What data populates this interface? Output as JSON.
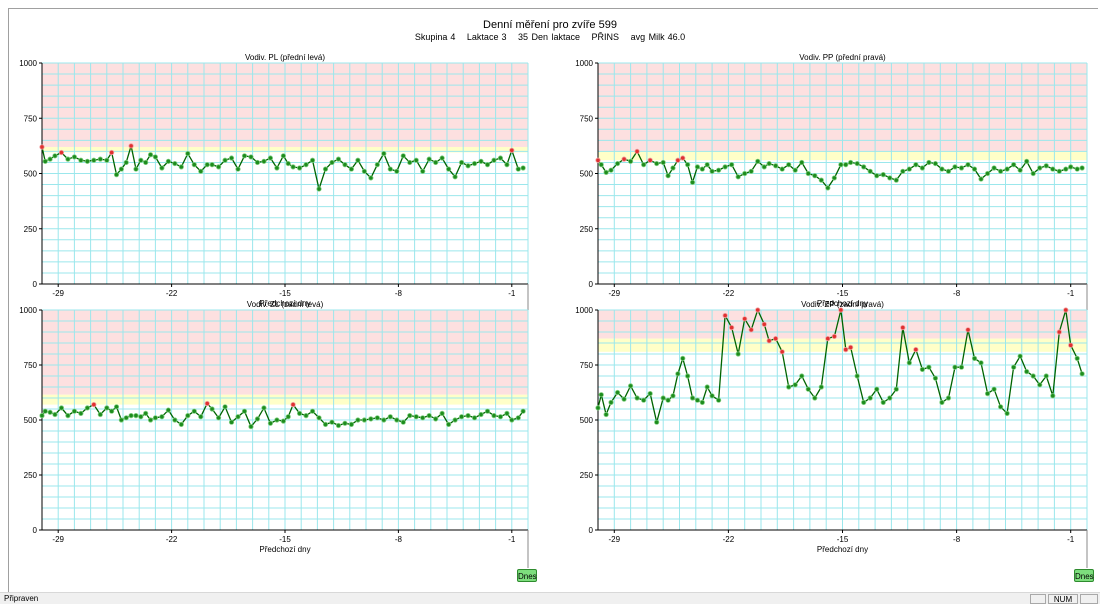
{
  "header": {
    "title": "Denní měření pro zvíře 599",
    "group_label": "Skupina",
    "group_value": "4",
    "lactation_label": "Laktace",
    "lactation_value": "3",
    "days_in_lactation": "35 Den laktace",
    "breed": "PŘINS",
    "avg_milk_label": "avg Milk",
    "avg_milk_value": "46.0"
  },
  "today_button_label": "Dnes",
  "status": {
    "text": "Připraven",
    "num": "NUM"
  },
  "colors": {
    "alarm_zone": "#fde0e0",
    "warning_zone": "#ffffc8",
    "grid": "#9be7ec",
    "line": "#006400",
    "point_normal": "#1e8c1e",
    "point_alert": "#e03030"
  },
  "chart_data": [
    {
      "type": "line",
      "title": "Vodiv. PL (přední levá)",
      "ylim": [
        0,
        1000
      ],
      "yticks": [
        "0",
        "250",
        "500",
        "750",
        "1000"
      ],
      "xlim": [
        -30,
        0
      ],
      "xticks": [
        "-29",
        "-22",
        "-15",
        "-8",
        "-1"
      ],
      "xlabel": "Předchozí dny",
      "alarm_from": 620,
      "warning_from": 595,
      "series": [
        {
          "x": [
            -30,
            -29.8,
            -29.5,
            -29.2,
            -28.8,
            -28.4,
            -28,
            -27.6,
            -27.2,
            -26.8,
            -26.4,
            -26,
            -25.7,
            -25.4,
            -25.1,
            -24.8,
            -24.5,
            -24.2,
            -23.9,
            -23.6,
            -23.3,
            -23,
            -22.6,
            -22.2,
            -21.8,
            -21.4,
            -21,
            -20.6,
            -20.2,
            -19.8,
            -19.5,
            -19.1,
            -18.7,
            -18.3,
            -17.9,
            -17.5,
            -17.1,
            -16.7,
            -16.3,
            -15.9,
            -15.5,
            -15.1,
            -14.8,
            -14.5,
            -14.1,
            -13.7,
            -13.3,
            -12.9,
            -12.5,
            -12.1,
            -11.7,
            -11.3,
            -10.9,
            -10.5,
            -10.1,
            -9.7,
            -9.3,
            -8.9,
            -8.5,
            -8.1,
            -7.7,
            -7.3,
            -6.9,
            -6.5,
            -6.1,
            -5.7,
            -5.3,
            -4.9,
            -4.5,
            -4.1,
            -3.7,
            -3.3,
            -2.9,
            -2.5,
            -2.1,
            -1.7,
            -1.3,
            -1,
            -0.6,
            -0.3
          ],
          "y": [
            620,
            555,
            565,
            580,
            595,
            565,
            575,
            560,
            555,
            560,
            565,
            560,
            595,
            495,
            520,
            550,
            625,
            520,
            560,
            550,
            585,
            575,
            525,
            555,
            545,
            530,
            590,
            540,
            510,
            540,
            540,
            530,
            560,
            570,
            520,
            580,
            575,
            550,
            555,
            570,
            525,
            580,
            545,
            530,
            525,
            540,
            560,
            430,
            520,
            550,
            565,
            540,
            520,
            560,
            510,
            480,
            540,
            590,
            520,
            510,
            580,
            550,
            560,
            510,
            565,
            550,
            570,
            520,
            485,
            550,
            535,
            545,
            555,
            540,
            560,
            570,
            540,
            605,
            520,
            525
          ]
        }
      ]
    },
    {
      "type": "line",
      "title": "Vodiv. PP (přední pravá)",
      "ylim": [
        0,
        1000
      ],
      "yticks": [
        "0",
        "250",
        "500",
        "750",
        "1000"
      ],
      "xlim": [
        -30,
        0
      ],
      "xticks": [
        "-29",
        "-22",
        "-15",
        "-8",
        "-1"
      ],
      "xlabel": "Předchozí dny",
      "alarm_from": 600,
      "warning_from": 560,
      "series": [
        {
          "x": [
            -30,
            -29.8,
            -29.5,
            -29.2,
            -28.8,
            -28.4,
            -28,
            -27.6,
            -27.2,
            -26.8,
            -26.4,
            -26,
            -25.7,
            -25.4,
            -25.1,
            -24.8,
            -24.5,
            -24.2,
            -23.9,
            -23.6,
            -23.3,
            -23,
            -22.6,
            -22.2,
            -21.8,
            -21.4,
            -21,
            -20.6,
            -20.2,
            -19.8,
            -19.5,
            -19.1,
            -18.7,
            -18.3,
            -17.9,
            -17.5,
            -17.1,
            -16.7,
            -16.3,
            -15.9,
            -15.5,
            -15.1,
            -14.8,
            -14.5,
            -14.1,
            -13.7,
            -13.3,
            -12.9,
            -12.5,
            -12.1,
            -11.7,
            -11.3,
            -10.9,
            -10.5,
            -10.1,
            -9.7,
            -9.3,
            -8.9,
            -8.5,
            -8.1,
            -7.7,
            -7.3,
            -6.9,
            -6.5,
            -6.1,
            -5.7,
            -5.3,
            -4.9,
            -4.5,
            -4.1,
            -3.7,
            -3.3,
            -2.9,
            -2.5,
            -2.1,
            -1.7,
            -1.3,
            -1,
            -0.6,
            -0.3
          ],
          "y": [
            560,
            540,
            505,
            515,
            545,
            565,
            555,
            600,
            540,
            560,
            545,
            550,
            490,
            525,
            560,
            570,
            540,
            460,
            530,
            520,
            540,
            510,
            515,
            530,
            540,
            485,
            500,
            510,
            555,
            530,
            545,
            535,
            520,
            540,
            515,
            550,
            500,
            490,
            470,
            435,
            480,
            540,
            540,
            550,
            545,
            530,
            510,
            490,
            495,
            480,
            470,
            510,
            520,
            540,
            525,
            550,
            545,
            520,
            510,
            530,
            525,
            540,
            520,
            475,
            500,
            525,
            510,
            520,
            540,
            515,
            555,
            500,
            525,
            535,
            520,
            510,
            520,
            530,
            520,
            525
          ]
        }
      ]
    },
    {
      "type": "line",
      "title": "Vodiv. ZL (zadní levá)",
      "ylim": [
        0,
        1000
      ],
      "yticks": [
        "0",
        "250",
        "500",
        "750",
        "1000"
      ],
      "xlim": [
        -30,
        0
      ],
      "xticks": [
        "-29",
        "-22",
        "-15",
        "-8",
        "-1"
      ],
      "xlabel": "Předchozí dny",
      "alarm_from": 615,
      "warning_from": 570,
      "series": [
        {
          "x": [
            -30,
            -29.8,
            -29.5,
            -29.2,
            -28.8,
            -28.4,
            -28,
            -27.6,
            -27.2,
            -26.8,
            -26.4,
            -26,
            -25.7,
            -25.4,
            -25.1,
            -24.8,
            -24.5,
            -24.2,
            -23.9,
            -23.6,
            -23.3,
            -23,
            -22.6,
            -22.2,
            -21.8,
            -21.4,
            -21,
            -20.6,
            -20.2,
            -19.8,
            -19.5,
            -19.1,
            -18.7,
            -18.3,
            -17.9,
            -17.5,
            -17.1,
            -16.7,
            -16.3,
            -15.9,
            -15.5,
            -15.1,
            -14.8,
            -14.5,
            -14.1,
            -13.7,
            -13.3,
            -12.9,
            -12.5,
            -12.1,
            -11.7,
            -11.3,
            -10.9,
            -10.5,
            -10.1,
            -9.7,
            -9.3,
            -8.9,
            -8.5,
            -8.1,
            -7.7,
            -7.3,
            -6.9,
            -6.5,
            -6.1,
            -5.7,
            -5.3,
            -4.9,
            -4.5,
            -4.1,
            -3.7,
            -3.3,
            -2.9,
            -2.5,
            -2.1,
            -1.7,
            -1.3,
            -1,
            -0.6,
            -0.3
          ],
          "y": [
            520,
            540,
            535,
            525,
            555,
            520,
            540,
            530,
            555,
            570,
            525,
            555,
            540,
            560,
            500,
            510,
            520,
            520,
            515,
            530,
            500,
            510,
            515,
            545,
            500,
            480,
            520,
            540,
            515,
            575,
            550,
            510,
            560,
            490,
            515,
            540,
            470,
            505,
            555,
            485,
            500,
            495,
            515,
            570,
            530,
            520,
            540,
            510,
            480,
            490,
            475,
            485,
            480,
            500,
            500,
            505,
            510,
            500,
            515,
            500,
            490,
            520,
            515,
            510,
            520,
            505,
            530,
            480,
            500,
            515,
            520,
            510,
            525,
            540,
            520,
            515,
            530,
            500,
            510,
            540
          ]
        }
      ]
    },
    {
      "type": "line",
      "title": "Vodiv. ZP (zadní pravá)",
      "ylim": [
        0,
        1000
      ],
      "yticks": [
        "0",
        "250",
        "500",
        "750",
        "1000"
      ],
      "xlim": [
        -30,
        0
      ],
      "xticks": [
        "-29",
        "-22",
        "-15",
        "-8",
        "-1"
      ],
      "xlabel": "Předchozí dny",
      "alarm_from": 870,
      "warning_from": 810,
      "series": [
        {
          "x": [
            -30,
            -29.8,
            -29.5,
            -29.2,
            -28.8,
            -28.4,
            -28,
            -27.6,
            -27.2,
            -26.8,
            -26.4,
            -26,
            -25.7,
            -25.4,
            -25.1,
            -24.8,
            -24.5,
            -24.2,
            -23.9,
            -23.6,
            -23.3,
            -23,
            -22.6,
            -22.2,
            -21.8,
            -21.4,
            -21,
            -20.6,
            -20.2,
            -19.8,
            -19.5,
            -19.1,
            -18.7,
            -18.3,
            -17.9,
            -17.5,
            -17.1,
            -16.7,
            -16.3,
            -15.9,
            -15.5,
            -15.1,
            -14.8,
            -14.5,
            -14.1,
            -13.7,
            -13.3,
            -12.9,
            -12.5,
            -12.1,
            -11.7,
            -11.3,
            -10.9,
            -10.5,
            -10.1,
            -9.7,
            -9.3,
            -8.9,
            -8.5,
            -8.1,
            -7.7,
            -7.3,
            -6.9,
            -6.5,
            -6.1,
            -5.7,
            -5.3,
            -4.9,
            -4.5,
            -4.1,
            -3.7,
            -3.3,
            -2.9,
            -2.5,
            -2.1,
            -1.7,
            -1.3,
            -1,
            -0.6,
            -0.3
          ],
          "y": [
            555,
            615,
            525,
            580,
            625,
            595,
            655,
            600,
            590,
            620,
            490,
            600,
            590,
            610,
            710,
            780,
            700,
            600,
            590,
            580,
            650,
            610,
            590,
            975,
            920,
            800,
            960,
            910,
            1000,
            935,
            860,
            870,
            810,
            650,
            660,
            700,
            640,
            600,
            650,
            870,
            880,
            1000,
            820,
            830,
            700,
            580,
            600,
            640,
            580,
            600,
            640,
            920,
            760,
            820,
            730,
            740,
            690,
            580,
            600,
            740,
            740,
            910,
            780,
            760,
            620,
            640,
            560,
            530,
            740,
            790,
            720,
            700,
            660,
            700,
            610,
            900,
            1000,
            840,
            780,
            710
          ]
        }
      ]
    }
  ]
}
